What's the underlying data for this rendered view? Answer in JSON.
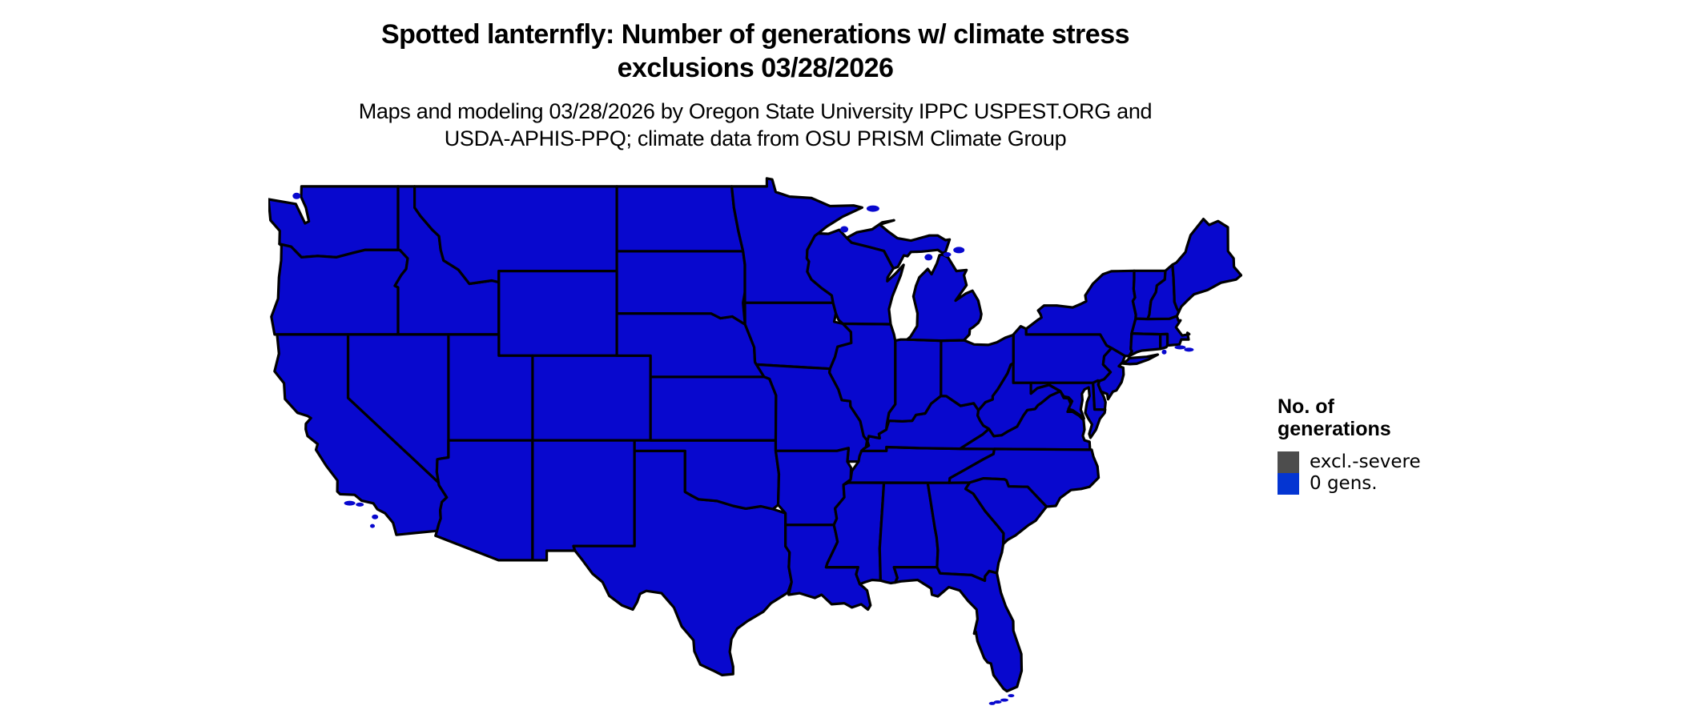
{
  "header": {
    "title_lines": [
      "Spotted lanternfly: Number of generations w/ climate stress",
      "exclusions 03/28/2026"
    ],
    "subtitle_lines": [
      "Maps and modeling 03/28/2026 by Oregon State University IPPC USPEST.ORG and",
      "USDA-APHIS-PPQ; climate data from OSU PRISM Climate Group"
    ]
  },
  "legend": {
    "title_lines": [
      "No. of",
      "generations"
    ],
    "items": [
      {
        "label": "excl.-severe",
        "color": "#4D4D4D"
      },
      {
        "label": "0 gens.",
        "color": "#0435D2"
      }
    ]
  },
  "map": {
    "region": "Contiguous United States",
    "fill_color": "#0808CE",
    "border_color": "#000000",
    "background": "#FFFFFF",
    "all_states_category": "0 gens."
  }
}
